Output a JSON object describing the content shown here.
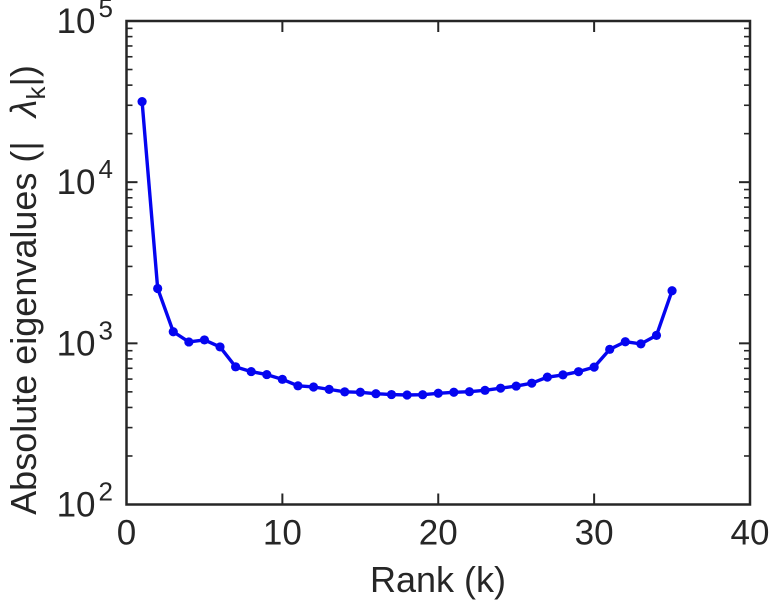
{
  "figure": {
    "background": "#ffffff"
  },
  "chart_data": {
    "type": "line",
    "title": "",
    "xlabel": "Rank (k)",
    "ylabel": {
      "text": "Absolute eigenvalues (|λk|)",
      "prefix": "Absolute eigenvalues (|",
      "symbol": "λ",
      "subscript": "k",
      "suffix": "|)"
    },
    "yscale": "log",
    "xlim": [
      0,
      40
    ],
    "ylim": [
      100,
      100000
    ],
    "x_ticks": [
      0,
      10,
      20,
      30,
      40
    ],
    "y_tick_exponents": [
      2,
      3,
      4,
      5
    ],
    "y_tick_base": "10",
    "y_minor_multiples": [
      2,
      3,
      4,
      5,
      6,
      7,
      8,
      9
    ],
    "grid": false,
    "legend": "none",
    "axis_color": "#262626",
    "x": [
      1,
      2,
      3,
      4,
      5,
      6,
      7,
      8,
      9,
      10,
      11,
      12,
      13,
      14,
      15,
      16,
      17,
      18,
      19,
      20,
      21,
      22,
      23,
      24,
      25,
      26,
      27,
      28,
      29,
      30,
      31,
      32,
      33,
      34,
      35
    ],
    "series": [
      {
        "name": "absolute eigenvalues",
        "color": "#0505f0",
        "marker": "circle",
        "values": [
          31600,
          2190,
          1180,
          1020,
          1050,
          950,
          715,
          668,
          640,
          598,
          545,
          536,
          518,
          500,
          497,
          487,
          481,
          478,
          480,
          490,
          497,
          501,
          511,
          527,
          543,
          566,
          617,
          637,
          667,
          712,
          918,
          1023,
          992,
          1120,
          2120
        ]
      }
    ]
  }
}
